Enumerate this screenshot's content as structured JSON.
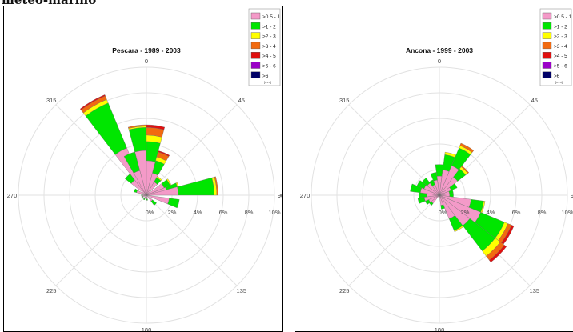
{
  "page": {
    "heading": "meteo-marino"
  },
  "chart_data": [
    {
      "type": "polar-bar",
      "title": "Pescara - 1989 - 2003",
      "angle_labels": [
        "0",
        "45",
        "90",
        "135",
        "180",
        "225",
        "270",
        "315"
      ],
      "radial_ticks": [
        "0%",
        "2%",
        "4%",
        "6%",
        "8%",
        "10%"
      ],
      "radial_max": 10,
      "legend_title_units": "[mm]",
      "legend": [
        {
          "label": ">0.5 - 1",
          "color": "#f49ac8"
        },
        {
          "label": ">1 - 2",
          "color": "#00e600"
        },
        {
          "label": ">2 - 3",
          "color": "#ffff00"
        },
        {
          "label": ">3 - 4",
          "color": "#f26a10"
        },
        {
          "label": ">4 - 5",
          "color": "#e01010"
        },
        {
          "label": ">5 - 6",
          "color": "#9b00c8"
        },
        {
          "label": ">6",
          "color": "#000066"
        }
      ],
      "sectors": [
        {
          "dir": 330,
          "values": [
            4.0,
            3.8,
            0.3,
            0.3,
            0.1
          ]
        },
        {
          "dir": 352.5,
          "values": [
            3.5,
            1.8,
            0.1,
            0.1
          ]
        },
        {
          "dir": 7.5,
          "values": [
            2.7,
            1.5,
            0.5,
            0.6,
            0.2
          ]
        },
        {
          "dir": 22.5,
          "values": [
            1.8,
            1.0,
            0.3,
            0.4,
            0.1
          ]
        },
        {
          "dir": 37.5,
          "values": [
            1.2,
            0.4,
            0.1
          ]
        },
        {
          "dir": 60,
          "values": [
            1.5,
            0.5,
            0.1
          ]
        },
        {
          "dir": 75,
          "values": [
            1.6,
            0.9,
            0.1
          ]
        },
        {
          "dir": 82.5,
          "values": [
            2.5,
            2.8,
            0.2,
            0.1
          ]
        },
        {
          "dir": 105,
          "values": [
            1.8,
            0.8
          ]
        },
        {
          "dir": 135,
          "values": [
            0.6,
            0.4
          ]
        },
        {
          "dir": 172.5,
          "values": [
            0.3,
            0.1
          ]
        },
        {
          "dir": 210,
          "values": [
            0.3,
            0.1
          ]
        },
        {
          "dir": 247.5,
          "values": [
            0.3,
            0.1
          ]
        },
        {
          "dir": 270,
          "values": [
            0.3,
            0.1
          ]
        },
        {
          "dir": 292.5,
          "values": [
            0.8,
            0.2
          ]
        },
        {
          "dir": 315,
          "values": [
            1.5,
            0.6
          ]
        },
        {
          "dir": 337.5,
          "values": [
            2.0,
            1.5
          ]
        }
      ]
    },
    {
      "type": "polar-bar",
      "title": "Ancona - 1999 - 2003",
      "angle_labels": [
        "0",
        "45",
        "90",
        "135",
        "180",
        "225",
        "270",
        "315"
      ],
      "radial_ticks": [
        "0%",
        "2%",
        "4%",
        "6%",
        "8%",
        "10%"
      ],
      "radial_max": 10,
      "legend_title_units": "[mm]",
      "legend": [
        {
          "label": ">0.5 - 1",
          "color": "#f49ac8"
        },
        {
          "label": ">1 - 2",
          "color": "#00e600"
        },
        {
          "label": ">2 - 3",
          "color": "#ffff00"
        },
        {
          "label": ">3 - 4",
          "color": "#f26a10"
        },
        {
          "label": ">4 - 5",
          "color": "#e01010"
        },
        {
          "label": ">5 - 6",
          "color": "#9b00c8"
        },
        {
          "label": ">6",
          "color": "#000066"
        }
      ],
      "sectors": [
        {
          "dir": 0,
          "values": [
            1.5,
            0.9
          ]
        },
        {
          "dir": 15,
          "values": [
            2.0,
            1.2,
            0.2
          ]
        },
        {
          "dir": 30,
          "values": [
            2.5,
            1.5,
            0.2,
            0.2
          ]
        },
        {
          "dir": 45,
          "values": [
            1.8,
            0.8,
            0.2,
            0.1
          ]
        },
        {
          "dir": 60,
          "values": [
            1.0,
            0.5
          ]
        },
        {
          "dir": 75,
          "values": [
            0.8,
            0.3
          ]
        },
        {
          "dir": 90,
          "values": [
            0.8,
            0.3
          ]
        },
        {
          "dir": 105,
          "values": [
            2.5,
            1.0,
            0.1
          ]
        },
        {
          "dir": 120,
          "values": [
            3.5,
            2.0,
            0.3,
            0.3,
            0.2
          ]
        },
        {
          "dir": 135,
          "values": [
            3.0,
            2.5,
            0.5,
            0.4,
            0.2
          ]
        },
        {
          "dir": 150,
          "values": [
            2.0,
            1.0,
            0.1
          ]
        },
        {
          "dir": 165,
          "values": [
            0.8,
            0.3
          ]
        },
        {
          "dir": 225,
          "values": [
            0.8,
            0.2
          ]
        },
        {
          "dir": 240,
          "values": [
            0.9,
            0.3
          ]
        },
        {
          "dir": 255,
          "values": [
            1.2,
            0.5
          ]
        },
        {
          "dir": 270,
          "values": [
            1.0,
            0.6
          ]
        },
        {
          "dir": 285,
          "values": [
            1.5,
            0.8
          ]
        },
        {
          "dir": 300,
          "values": [
            1.3,
            0.6
          ]
        },
        {
          "dir": 315,
          "values": [
            1.2,
            0.5
          ]
        },
        {
          "dir": 330,
          "values": [
            0.9,
            0.4
          ]
        },
        {
          "dir": 345,
          "values": [
            1.2,
            0.6
          ]
        }
      ]
    }
  ]
}
